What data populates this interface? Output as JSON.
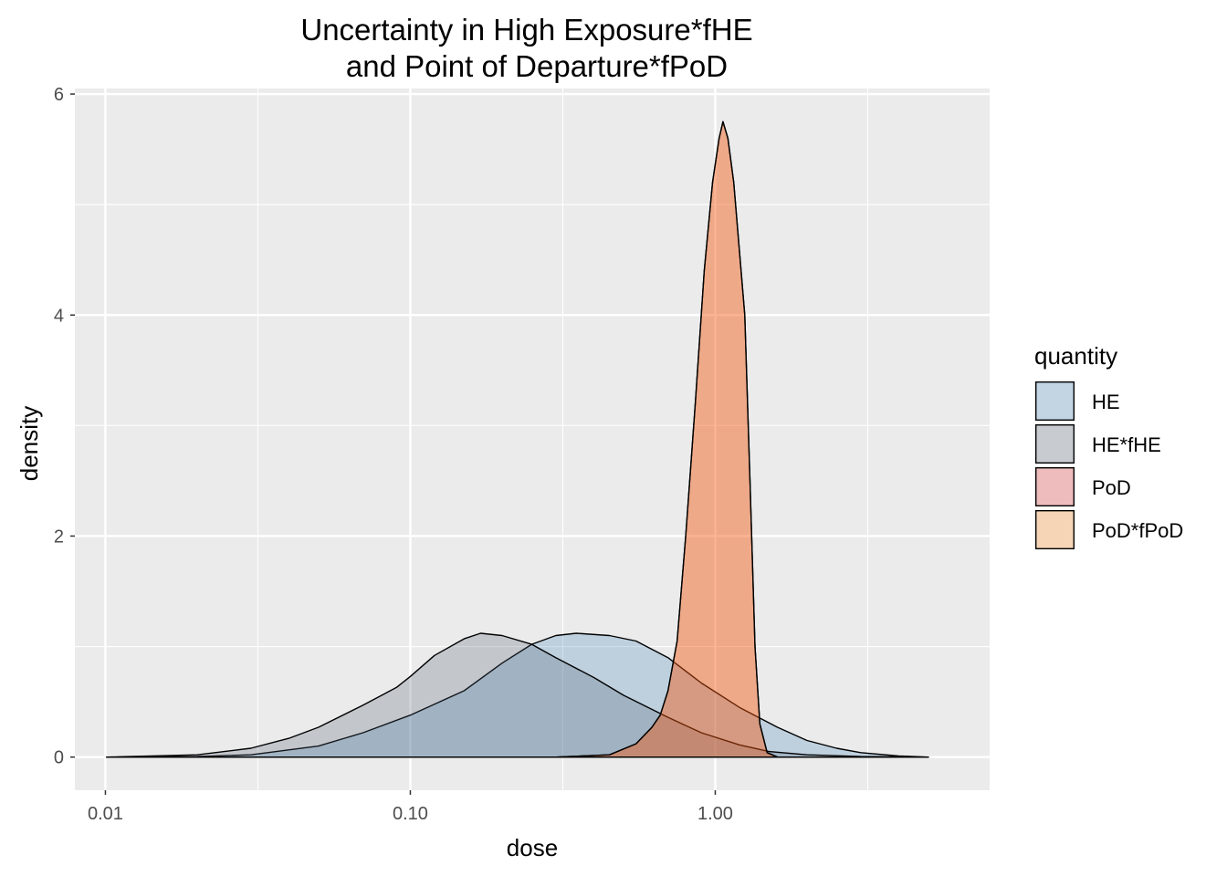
{
  "chart_data": {
    "type": "area",
    "title": "Uncertainty in High Exposure*fHE\nand Point of Departure*fPoD",
    "xlabel": "dose",
    "ylabel": "density",
    "x_scale": "log10",
    "xlim": [
      0.00794,
      7.94
    ],
    "ylim": [
      -0.3,
      6.05
    ],
    "x_ticks": [
      0.01,
      0.1,
      1
    ],
    "x_tick_labels": [
      "0.01",
      "0.10",
      "1.00"
    ],
    "y_ticks": [
      0,
      2,
      4,
      6
    ],
    "y_tick_labels": [
      "0",
      "2",
      "4",
      "6"
    ],
    "grid": true,
    "legend": {
      "title": "quantity",
      "position": "right"
    },
    "series": [
      {
        "name": "HE",
        "color": "#377EB8",
        "points": [
          [
            0.0101,
            0
          ],
          [
            0.02,
            0.005
          ],
          [
            0.03,
            0.02
          ],
          [
            0.05,
            0.1
          ],
          [
            0.07,
            0.22
          ],
          [
            0.1,
            0.38
          ],
          [
            0.15,
            0.6
          ],
          [
            0.2,
            0.85
          ],
          [
            0.25,
            1.02
          ],
          [
            0.3,
            1.1
          ],
          [
            0.35,
            1.12
          ],
          [
            0.45,
            1.1
          ],
          [
            0.55,
            1.05
          ],
          [
            0.7,
            0.9
          ],
          [
            0.9,
            0.67
          ],
          [
            1.2,
            0.45
          ],
          [
            1.6,
            0.27
          ],
          [
            2,
            0.15
          ],
          [
            2.5,
            0.08
          ],
          [
            3,
            0.04
          ],
          [
            4,
            0.01
          ],
          [
            5,
            0
          ]
        ]
      },
      {
        "name": "HE*fHE",
        "color": "#4A5A70",
        "points": [
          [
            0.0101,
            0
          ],
          [
            0.02,
            0.02
          ],
          [
            0.03,
            0.08
          ],
          [
            0.04,
            0.17
          ],
          [
            0.05,
            0.27
          ],
          [
            0.07,
            0.47
          ],
          [
            0.09,
            0.63
          ],
          [
            0.1,
            0.73
          ],
          [
            0.12,
            0.92
          ],
          [
            0.15,
            1.07
          ],
          [
            0.17,
            1.12
          ],
          [
            0.2,
            1.1
          ],
          [
            0.25,
            1.02
          ],
          [
            0.3,
            0.9
          ],
          [
            0.4,
            0.72
          ],
          [
            0.5,
            0.56
          ],
          [
            0.7,
            0.36
          ],
          [
            0.9,
            0.22
          ],
          [
            1.2,
            0.11
          ],
          [
            1.5,
            0.05
          ],
          [
            2,
            0.02
          ],
          [
            3,
            0.005
          ],
          [
            5,
            0
          ]
        ]
      },
      {
        "name": "PoD",
        "color": "#E41A1C",
        "points": [
          [
            0.0101,
            0
          ],
          [
            0.3,
            0
          ],
          [
            0.45,
            0.02
          ],
          [
            0.55,
            0.12
          ],
          [
            0.62,
            0.27
          ],
          [
            0.66,
            0.38
          ],
          [
            0.7,
            0.6
          ],
          [
            0.75,
            1.05
          ],
          [
            0.8,
            2
          ],
          [
            0.86,
            3.2
          ],
          [
            0.92,
            4.4
          ],
          [
            0.98,
            5.2
          ],
          [
            1.03,
            5.6
          ],
          [
            1.06,
            5.75
          ],
          [
            1.1,
            5.6
          ],
          [
            1.15,
            5.2
          ],
          [
            1.25,
            4
          ],
          [
            1.3,
            2.5
          ],
          [
            1.35,
            1
          ],
          [
            1.4,
            0.3
          ],
          [
            1.48,
            0.04
          ],
          [
            1.6,
            0
          ],
          [
            5,
            0
          ]
        ]
      },
      {
        "name": "PoD*fPoD",
        "color": "#FF7F00",
        "points": [
          [
            0.0101,
            0
          ],
          [
            0.3,
            0
          ],
          [
            0.45,
            0.02
          ],
          [
            0.55,
            0.12
          ],
          [
            0.62,
            0.27
          ],
          [
            0.66,
            0.38
          ],
          [
            0.7,
            0.6
          ],
          [
            0.75,
            1.05
          ],
          [
            0.8,
            2
          ],
          [
            0.86,
            3.2
          ],
          [
            0.92,
            4.4
          ],
          [
            0.98,
            5.2
          ],
          [
            1.03,
            5.6
          ],
          [
            1.06,
            5.75
          ],
          [
            1.1,
            5.6
          ],
          [
            1.15,
            5.2
          ],
          [
            1.25,
            4
          ],
          [
            1.3,
            2.5
          ],
          [
            1.35,
            1
          ],
          [
            1.4,
            0.3
          ],
          [
            1.48,
            0.04
          ],
          [
            1.6,
            0
          ],
          [
            5,
            0
          ]
        ]
      }
    ]
  }
}
